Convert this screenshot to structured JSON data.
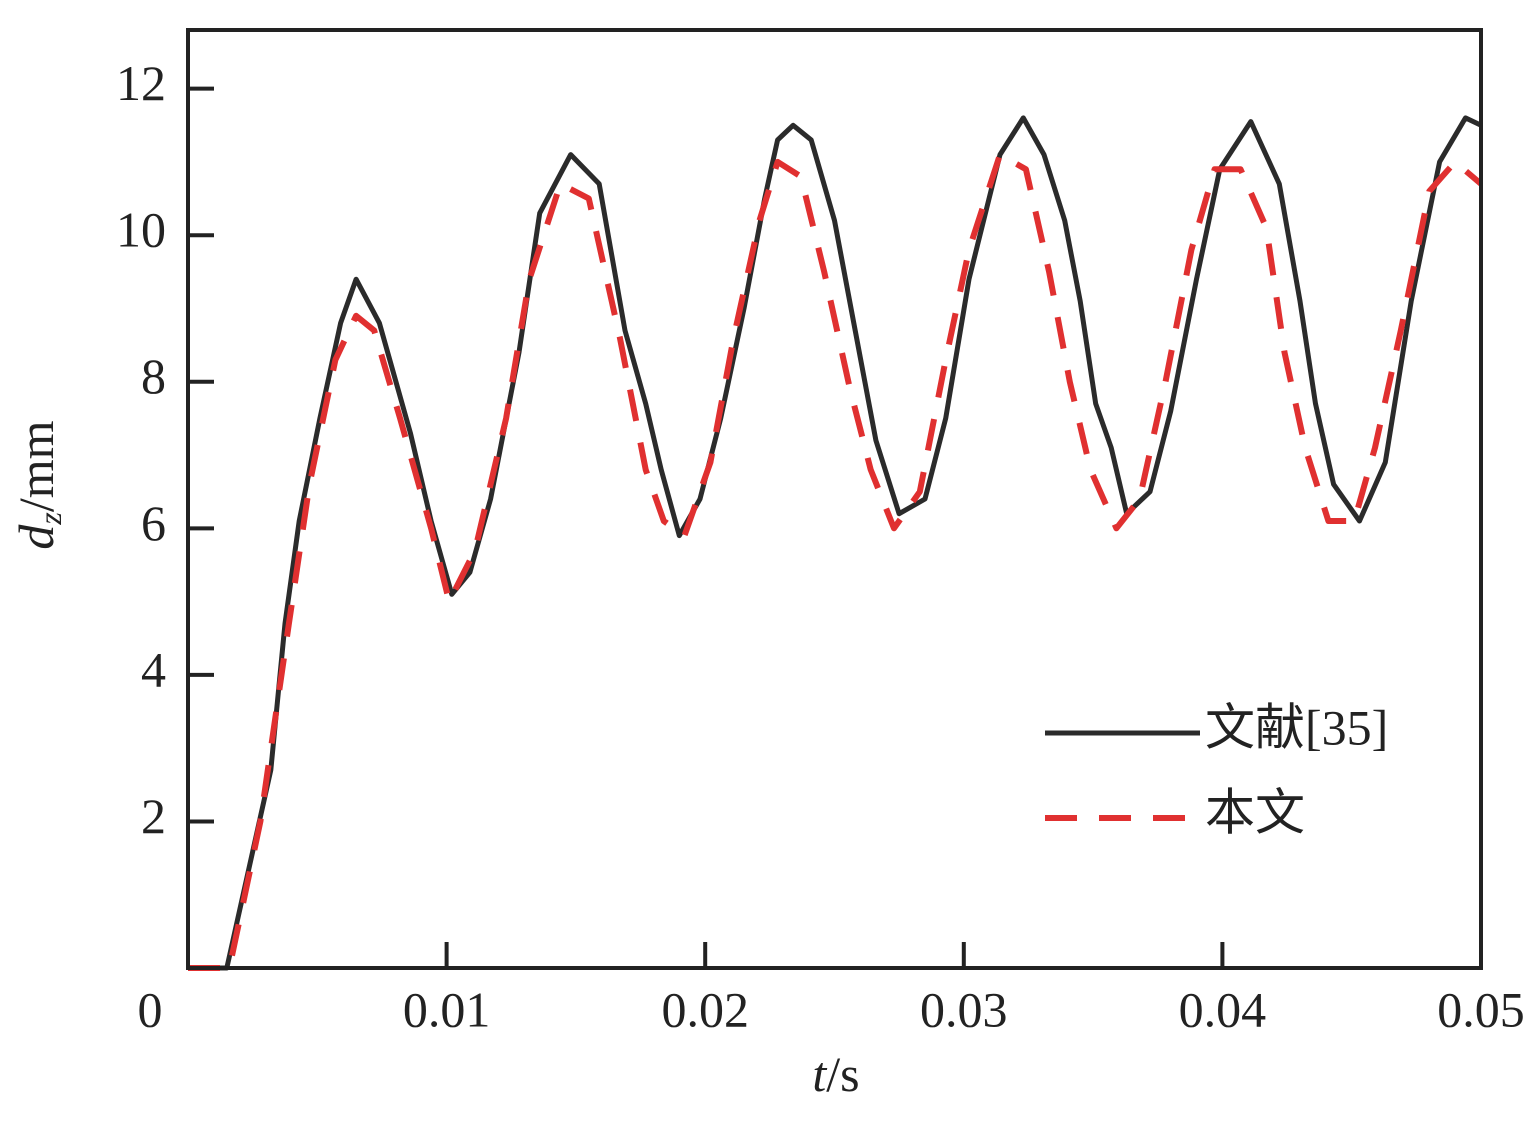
{
  "chart_data": {
    "type": "line",
    "xlabel": {
      "symbol": "t",
      "unit": "/s"
    },
    "ylabel": {
      "symbol": "d",
      "subscript": "z",
      "unit": "/mm"
    },
    "xlim": [
      0,
      0.05
    ],
    "xticks": [
      0,
      0.01,
      0.02,
      0.03,
      0.04,
      0.05
    ],
    "ylim": [
      0,
      12.8
    ],
    "yticks": [
      2,
      4,
      6,
      8,
      10,
      12
    ],
    "legend": "lower right",
    "series": [
      {
        "name": "文献[35]",
        "color": "#2b2b2b",
        "linestyle": "solid",
        "x": [
          0,
          0.0015,
          0.0032,
          0.00375,
          0.0043,
          0.0051,
          0.0059,
          0.0065,
          0.0074,
          0.0086,
          0.0094,
          0.0102,
          0.0109,
          0.0117,
          0.0128,
          0.0136,
          0.0148,
          0.0159,
          0.0169,
          0.0177,
          0.0183,
          0.019,
          0.0198,
          0.0206,
          0.0215,
          0.0223,
          0.0228,
          0.0234,
          0.0241,
          0.025,
          0.0258,
          0.0266,
          0.0275,
          0.0285,
          0.0293,
          0.0302,
          0.0314,
          0.0323,
          0.0331,
          0.0339,
          0.0345,
          0.0351,
          0.0357,
          0.0363,
          0.0372,
          0.038,
          0.039,
          0.0399,
          0.0411,
          0.0422,
          0.043,
          0.0436,
          0.0443,
          0.0453,
          0.0463,
          0.0473,
          0.0484,
          0.0494,
          0.05
        ],
        "values": [
          0,
          0,
          2.7,
          4.7,
          6.1,
          7.5,
          8.8,
          9.4,
          8.8,
          7.3,
          6.1,
          5.1,
          5.4,
          6.4,
          8.4,
          10.3,
          11.1,
          10.7,
          8.7,
          7.7,
          6.8,
          5.9,
          6.4,
          7.5,
          9.0,
          10.5,
          11.3,
          11.5,
          11.3,
          10.2,
          8.7,
          7.2,
          6.2,
          6.4,
          7.5,
          9.4,
          11.1,
          11.6,
          11.1,
          10.2,
          9.1,
          7.7,
          7.1,
          6.2,
          6.5,
          7.6,
          9.4,
          10.9,
          11.55,
          10.7,
          9.1,
          7.7,
          6.6,
          6.1,
          6.9,
          9.1,
          11.0,
          11.6,
          11.5
        ]
      },
      {
        "name": "本文",
        "color": "#e03030",
        "linestyle": "dashed",
        "x": [
          0,
          0.0016,
          0.0028,
          0.0039,
          0.0047,
          0.0057,
          0.0065,
          0.0072,
          0.0082,
          0.0094,
          0.0101,
          0.0111,
          0.0123,
          0.0132,
          0.0144,
          0.0155,
          0.0167,
          0.0177,
          0.0184,
          0.0192,
          0.0202,
          0.0211,
          0.0221,
          0.0228,
          0.0237,
          0.0246,
          0.0256,
          0.0264,
          0.0273,
          0.0283,
          0.0293,
          0.0302,
          0.0314,
          0.0324,
          0.0333,
          0.0341,
          0.0349,
          0.0359,
          0.0368,
          0.0378,
          0.0388,
          0.0397,
          0.0407,
          0.0417,
          0.0424,
          0.0432,
          0.0441,
          0.0451,
          0.0459,
          0.0469,
          0.048,
          0.049,
          0.05
        ],
        "values": [
          0,
          0,
          2.0,
          4.7,
          6.6,
          8.3,
          8.9,
          8.7,
          7.5,
          6.0,
          5.0,
          5.7,
          7.5,
          9.4,
          10.7,
          10.5,
          8.6,
          6.8,
          6.1,
          5.9,
          6.9,
          8.6,
          10.2,
          11.0,
          10.8,
          9.5,
          7.9,
          6.8,
          6.0,
          6.5,
          8.3,
          9.8,
          11.1,
          10.9,
          9.5,
          8.0,
          6.8,
          6.0,
          6.4,
          8.0,
          9.8,
          10.9,
          10.9,
          10.1,
          8.4,
          7.1,
          6.1,
          6.1,
          7.1,
          8.7,
          10.6,
          11.0,
          10.7
        ]
      }
    ]
  }
}
